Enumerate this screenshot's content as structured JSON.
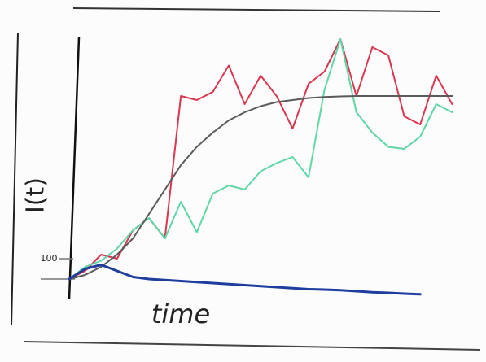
{
  "chart_data": {
    "type": "line",
    "y_label": "I(t)",
    "x_label": "time",
    "x": [
      0,
      4,
      8,
      12,
      16,
      20,
      24,
      28,
      32,
      36,
      40,
      44,
      48,
      52,
      56,
      60,
      64,
      68,
      72,
      76,
      80,
      84,
      88,
      92,
      96
    ],
    "xlim": [
      0,
      100
    ],
    "ylim": [
      -100,
      1200
    ],
    "yticks": [
      100
    ],
    "grid": false,
    "series": [
      {
        "color": "#d9364f",
        "values": [
          0,
          40,
          120,
          100,
          240,
          300,
          200,
          900,
          880,
          920,
          1050,
          860,
          1000,
          900,
          740,
          960,
          1020,
          1180,
          900,
          1140,
          1100,
          800,
          760,
          1000,
          860
        ]
      },
      {
        "color": "#5fd6a6",
        "values": [
          0,
          60,
          90,
          150,
          240,
          300,
          200,
          380,
          230,
          420,
          460,
          440,
          530,
          570,
          600,
          500,
          930,
          1180,
          820,
          720,
          650,
          640,
          700,
          860,
          820
        ]
      },
      {
        "color": "#5a5a5a",
        "values": [
          0,
          20,
          60,
          120,
          200,
          320,
          440,
          560,
          650,
          720,
          780,
          820,
          850,
          870,
          880,
          890,
          895,
          898,
          900,
          900,
          900,
          900,
          900,
          900,
          900
        ]
      },
      {
        "color": "#1f3d9c",
        "values": [
          0,
          50,
          70,
          40,
          10,
          0,
          -5,
          -10,
          -15,
          -20,
          -25,
          -30,
          -35,
          -40,
          -45,
          -50,
          -52,
          -55,
          -60,
          -65,
          -68,
          -72,
          -75,
          null,
          null
        ]
      }
    ]
  }
}
